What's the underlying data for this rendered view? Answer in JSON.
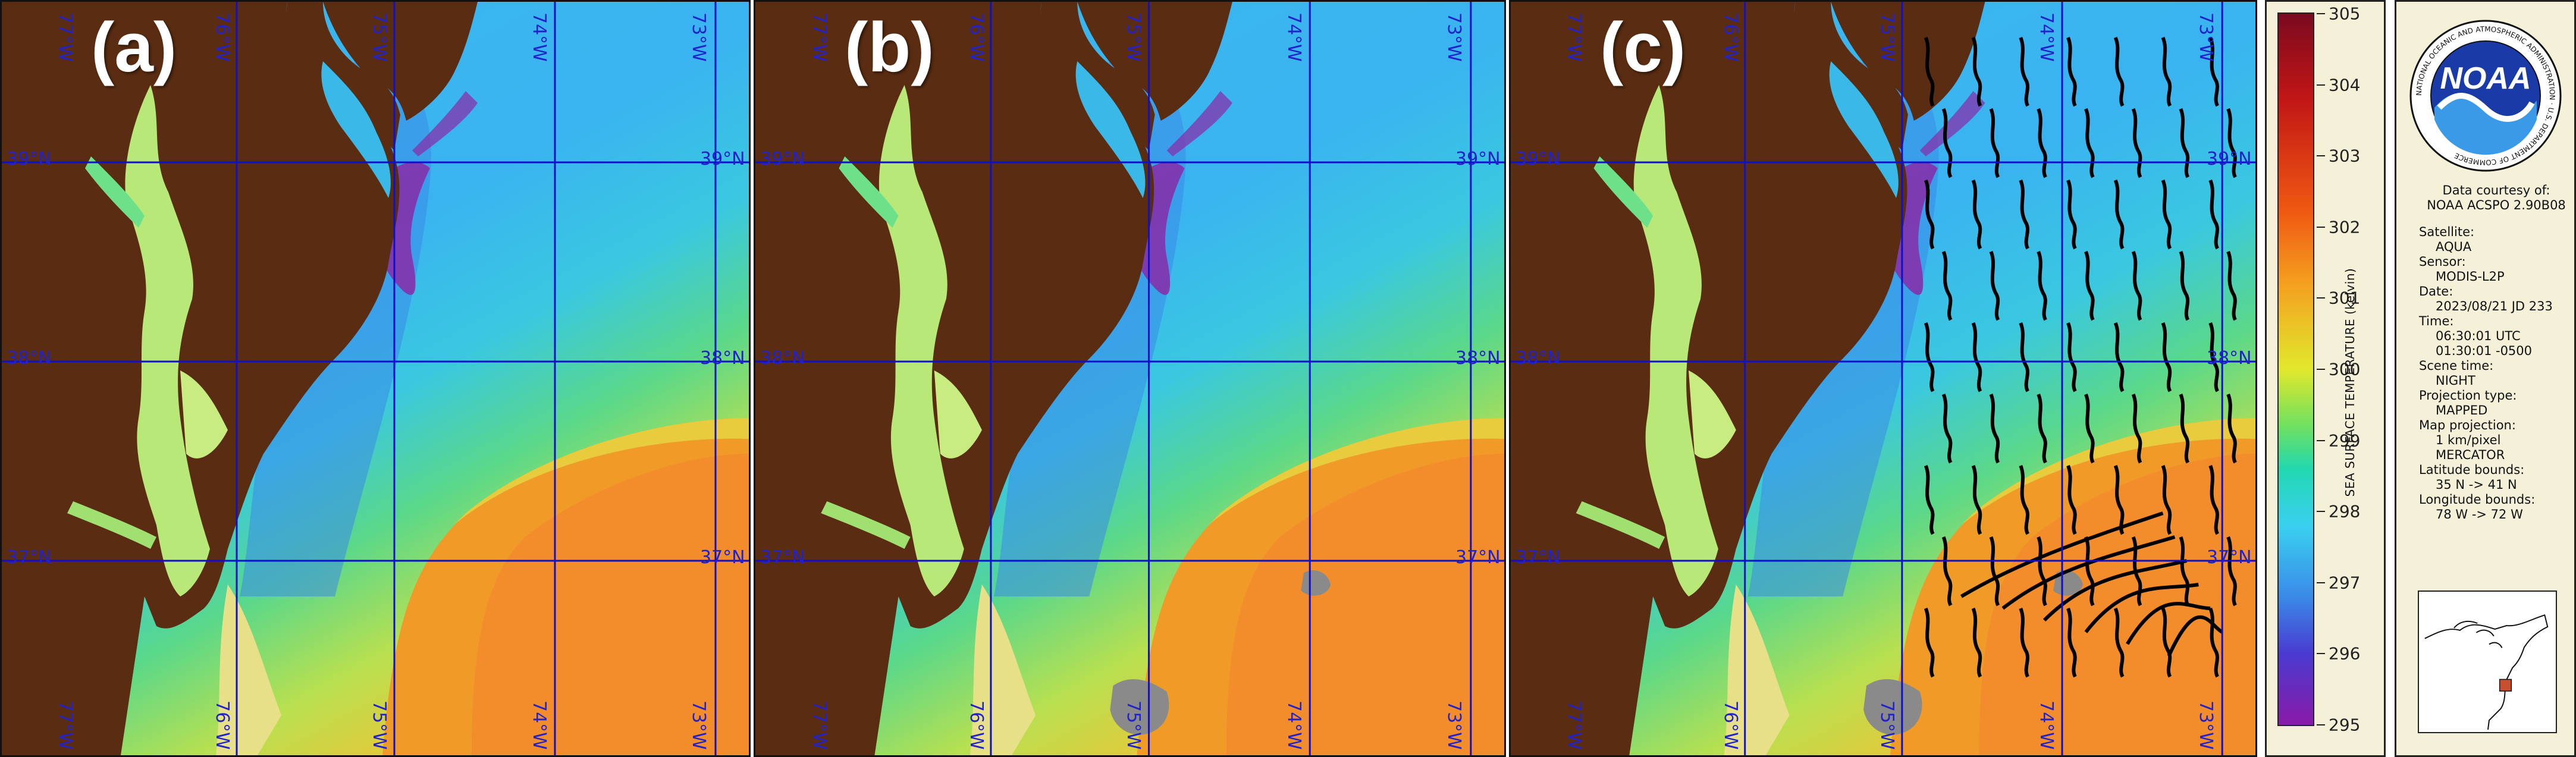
{
  "panels": [
    {
      "label": "(a)"
    },
    {
      "label": "(b)"
    },
    {
      "label": "(c)"
    }
  ],
  "grid": {
    "lat_labels": [
      "39°N",
      "38°N",
      "37°N"
    ],
    "lon_labels": [
      "77°W",
      "76°W",
      "75°W",
      "74°W",
      "73°W"
    ]
  },
  "colorbar": {
    "title": "SEA SURFACE TEMPERATURE (kelvin)",
    "ticks": [
      "305",
      "304",
      "303",
      "302",
      "301",
      "300",
      "299",
      "298",
      "297",
      "296",
      "295"
    ]
  },
  "info": {
    "logo_text": "NOAA",
    "logo_ring_text": "NATIONAL OCEANIC AND ATMOSPHERIC ADMINISTRATION · U.S. DEPARTMENT OF COMMERCE",
    "courtesy_line1": "Data courtesy of:",
    "courtesy_line2": "NOAA ACSPO 2.90B08",
    "fields": [
      {
        "label": "Satellite:",
        "values": [
          "AQUA"
        ]
      },
      {
        "label": "Sensor:",
        "values": [
          "MODIS-L2P"
        ]
      },
      {
        "label": "Date:",
        "values": [
          "2023/08/21 JD 233"
        ]
      },
      {
        "label": "Time:",
        "values": [
          "06:30:01 UTC",
          "01:30:01 -0500"
        ]
      },
      {
        "label": "Scene time:",
        "values": [
          "NIGHT"
        ]
      },
      {
        "label": "Projection type:",
        "values": [
          "MAPPED"
        ]
      },
      {
        "label": "Map projection:",
        "values": [
          "1 km/pixel",
          "MERCATOR"
        ]
      },
      {
        "label": "Latitude bounds:",
        "values": [
          "35 N -> 41 N"
        ]
      },
      {
        "label": "Longitude bounds:",
        "values": [
          "78 W -> 72 W"
        ]
      }
    ]
  },
  "colors": {
    "land": "#5a2d12",
    "grid": "#1010c8",
    "cloud_mask": "#8a8a8a",
    "front_lines": "#000000"
  }
}
